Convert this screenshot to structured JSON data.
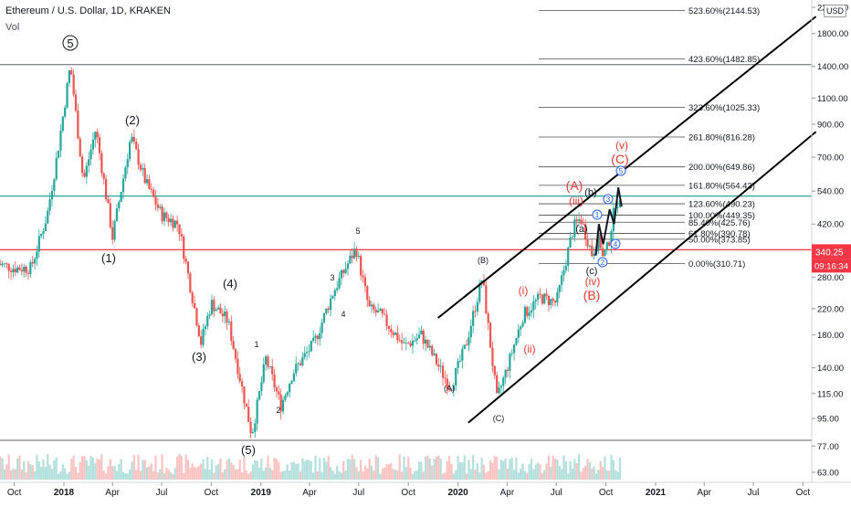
{
  "header": {
    "title": "Ethereum / U.S. Dollar, 1D, KRAKEN",
    "volume_label": "Vol",
    "currency_button": "USD"
  },
  "price_axis": {
    "ticks": [
      "2200.00",
      "1800.00",
      "1400.00",
      "1100.00",
      "900.00",
      "700.00",
      "540.00",
      "420.00",
      "340.00",
      "280.00",
      "220.00",
      "180.00",
      "140.00",
      "115.00",
      "95.00",
      "77.00",
      "63.00"
    ],
    "current_price": "340.25",
    "countdown": "09:16:34"
  },
  "time_axis": {
    "ticks": [
      "Oct",
      "2018",
      "Apr",
      "Jul",
      "Oct",
      "2019",
      "Apr",
      "Jul",
      "Oct",
      "2020",
      "Apr",
      "Jul",
      "Oct",
      "2021",
      "Apr",
      "Jul",
      "Oct"
    ]
  },
  "fibonacci": [
    {
      "label": "523.60%(2144.53)",
      "price": 2144.53
    },
    {
      "label": "423.60%(1482.85)",
      "price": 1482.85
    },
    {
      "label": "323.60%(1025.33)",
      "price": 1025.33
    },
    {
      "label": "261.80%(816.28)",
      "price": 816.28
    },
    {
      "label": "200.00%(649.86)",
      "price": 649.86
    },
    {
      "label": "161.80%(564.43)",
      "price": 564.43
    },
    {
      "label": "123.60%(490.23)",
      "price": 490.23
    },
    {
      "label": "100.00%(449.35)",
      "price": 449.35
    },
    {
      "label": "85.40%(425.76)",
      "price": 425.76
    },
    {
      "label": "61.80%(390.78)",
      "price": 390.78
    },
    {
      "label": "50.00%(373.85)",
      "price": 373.85
    },
    {
      "label": "0.00%(310.71)",
      "price": 310.71
    }
  ],
  "wave_labels": {
    "w5_circle": "5",
    "w2": "(2)",
    "w1": "(1)",
    "w4": "(4)",
    "w3": "(3)",
    "w5": "(5)",
    "s1": "1",
    "s2": "2",
    "s3": "3",
    "s4": "4",
    "s5": "5",
    "A_big": "(A)",
    "B_big": "(B)",
    "C_small": "(C)",
    "A_black": "(A)",
    "i": "(i)",
    "ii": "(ii)",
    "iii": "(iii)",
    "iv": "(iv)",
    "v": "(v)",
    "C_red": "(C)",
    "A_red": "(A)",
    "B_red": "(B)",
    "a": "(a)",
    "b": "(b)",
    "c": "(c)",
    "c1": "1",
    "c2": "2",
    "c3": "3",
    "c4": "4",
    "c5": "5"
  },
  "colors": {
    "up": "#26a69a",
    "down": "#ef5350",
    "teal_level": "#26a69a",
    "red_level": "#f23645",
    "fib": "#787b86",
    "wave_red": "#e53935",
    "circle_blue": "#2962ff"
  },
  "chart_data": {
    "type": "candlestick",
    "title": "Ethereum / U.S. Dollar, 1D, KRAKEN",
    "y_scale": "log",
    "ylim": [
      60,
      2400
    ],
    "x_range": [
      "2017-09",
      "2021-10"
    ],
    "last_price": 340.25,
    "horizontal_levels": [
      1420,
      520,
      345
    ],
    "channel": {
      "upper": [
        [
          "2019-11-25",
          205
        ],
        [
          "2021-10-25",
          2050
        ]
      ],
      "lower": [
        [
          "2020-01-20",
          92
        ],
        [
          "2021-10-25",
          850
        ]
      ]
    },
    "series": [
      {
        "values": [
          [
            "2017-09-01",
            310
          ],
          [
            "2017-10-01",
            300
          ],
          [
            "2017-11-01",
            300
          ],
          [
            "2017-12-01",
            450
          ],
          [
            "2017-12-20",
            720
          ],
          [
            "2018-01-13",
            1420
          ],
          [
            "2018-02-06",
            580
          ],
          [
            "2018-03-01",
            870
          ],
          [
            "2018-04-01",
            380
          ],
          [
            "2018-05-05",
            820
          ],
          [
            "2018-06-01",
            580
          ],
          [
            "2018-07-01",
            450
          ],
          [
            "2018-08-01",
            420
          ],
          [
            "2018-09-12",
            170
          ],
          [
            "2018-10-01",
            230
          ],
          [
            "2018-11-01",
            200
          ],
          [
            "2018-12-15",
            84
          ],
          [
            "2019-01-10",
            150
          ],
          [
            "2019-02-07",
            105
          ],
          [
            "2019-03-01",
            135
          ],
          [
            "2019-04-10",
            170
          ],
          [
            "2019-05-15",
            250
          ],
          [
            "2019-06-26",
            350
          ],
          [
            "2019-07-20",
            220
          ],
          [
            "2019-08-10",
            210
          ],
          [
            "2019-09-24",
            165
          ],
          [
            "2019-10-25",
            180
          ],
          [
            "2019-12-18",
            120
          ],
          [
            "2020-01-15",
            165
          ],
          [
            "2020-02-15",
            280
          ],
          [
            "2020-03-13",
            110
          ],
          [
            "2020-04-01",
            140
          ],
          [
            "2020-05-01",
            210
          ],
          [
            "2020-06-01",
            240
          ],
          [
            "2020-07-01",
            230
          ],
          [
            "2020-08-02",
            410
          ],
          [
            "2020-08-15",
            440
          ],
          [
            "2020-09-05",
            335
          ],
          [
            "2020-09-20",
            380
          ],
          [
            "2020-09-23",
            320
          ],
          [
            "2020-10-05",
            355
          ],
          [
            "2020-10-20",
            510
          ],
          [
            "2020-10-30",
            470
          ]
        ]
      }
    ]
  }
}
